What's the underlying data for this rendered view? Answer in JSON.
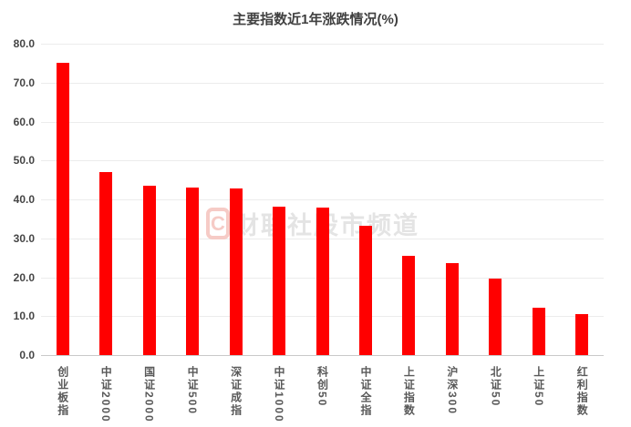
{
  "page": {
    "background": "#ffffff"
  },
  "chart_data": {
    "type": "bar",
    "title": "主要指数近1年涨跌情况(%)",
    "categories": [
      "创业板指",
      "中证2000",
      "国证2000",
      "中证500",
      "深证成指",
      "中证1000",
      "科创50",
      "中证全指",
      "上证指数",
      "沪深300",
      "北证50",
      "上证50",
      "红利指数"
    ],
    "values": [
      75.0,
      47.0,
      43.4,
      43.0,
      42.8,
      38.2,
      37.8,
      33.2,
      25.4,
      23.6,
      19.6,
      12.2,
      10.6
    ],
    "xlabel": "",
    "ylabel": "",
    "ylim": [
      0,
      80
    ],
    "ytick_step": 10,
    "ytick_labels": [
      "0.0",
      "10.0",
      "20.0",
      "30.0",
      "40.0",
      "50.0",
      "60.0",
      "70.0",
      "80.0"
    ],
    "grid": "horizontal",
    "legend": "none",
    "bar_color": "#ff0000"
  },
  "watermark": {
    "logo_text": "C",
    "text": "财联社股市频道"
  },
  "colors": {
    "bar": "#ff0000",
    "title": "#404040",
    "y_labels": "#454545",
    "x_labels": "#595959",
    "gridline": "#ececec",
    "axis_line": "#c9c9c9",
    "watermark": "#e4e4e4",
    "watermark_logo": "#f6cbc6"
  }
}
